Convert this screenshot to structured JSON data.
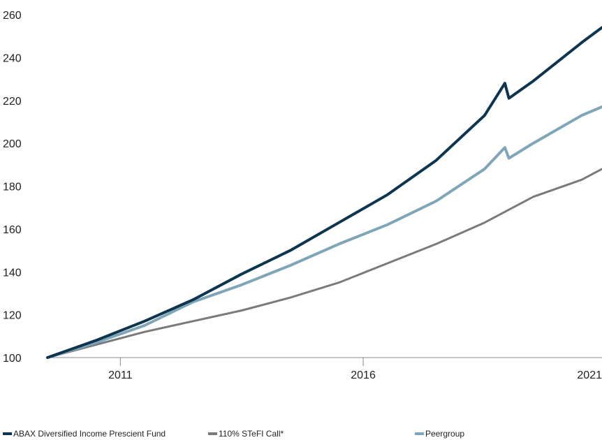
{
  "chart_data": {
    "type": "line",
    "title": "",
    "xlabel": "",
    "ylabel": "",
    "x_start": "2010-01",
    "x_end": "2021-06",
    "x_ticks": [
      {
        "label": "2011",
        "value": 2011.5
      },
      {
        "label": "2016",
        "value": 2016.5
      },
      {
        "label": "2021",
        "value": 2021.5
      }
    ],
    "ylim": [
      100,
      260
    ],
    "y_ticks": [
      100,
      120,
      140,
      160,
      180,
      200,
      220,
      240,
      260
    ],
    "grid": false,
    "legend_position": "bottom",
    "series": [
      {
        "name": "ABAX Diversified Income Prescient Fund",
        "color": "#0e3550",
        "x": [
          "2010-01",
          "2011-01",
          "2012-01",
          "2013-01",
          "2014-01",
          "2015-01",
          "2016-01",
          "2017-01",
          "2018-01",
          "2019-01",
          "2019-06",
          "2019-07",
          "2020-01",
          "2021-01",
          "2021-06"
        ],
        "values": [
          100,
          108,
          117,
          127,
          139,
          150,
          163,
          176,
          192,
          213,
          228,
          221,
          229,
          247,
          254
        ]
      },
      {
        "name": "110% STeFI Call*",
        "color": "#7a7a7a",
        "x": [
          "2010-01",
          "2011-01",
          "2012-01",
          "2013-01",
          "2014-01",
          "2015-01",
          "2016-01",
          "2017-01",
          "2018-01",
          "2019-01",
          "2020-01",
          "2021-01",
          "2021-06"
        ],
        "values": [
          100,
          106,
          112,
          117,
          122,
          128,
          135,
          144,
          153,
          163,
          175,
          183,
          188
        ]
      },
      {
        "name": "Peergroup",
        "color": "#7fa6b8",
        "x": [
          "2010-01",
          "2011-01",
          "2012-01",
          "2013-01",
          "2014-01",
          "2015-01",
          "2016-01",
          "2017-01",
          "2018-01",
          "2019-01",
          "2019-06",
          "2019-07",
          "2020-01",
          "2021-01",
          "2021-06"
        ],
        "values": [
          100,
          107,
          115,
          126,
          134,
          143,
          153,
          162,
          173,
          188,
          198,
          193,
          200,
          213,
          217
        ]
      }
    ]
  }
}
